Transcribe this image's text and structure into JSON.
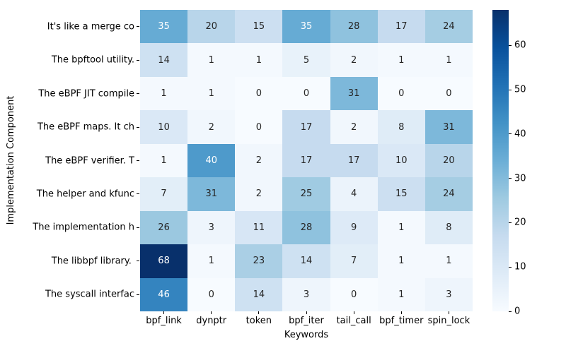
{
  "chart_data": {
    "type": "heatmap",
    "xlabel": "Keywords",
    "ylabel": "Implementation Component",
    "x_categories": [
      "bpf_link",
      "dynptr",
      "token",
      "bpf_iter",
      "tail_call",
      "bpf_timer",
      "spin_lock"
    ],
    "y_categories": [
      "It's like a merge co",
      "The bpftool utility.",
      "The eBPF JIT compile",
      "The eBPF maps. It ch",
      "The eBPF verifier. T",
      "The helper and kfunc",
      "The implementation h",
      "The libbpf library. ",
      "The syscall interfac"
    ],
    "values": [
      [
        35,
        20,
        15,
        35,
        28,
        17,
        24
      ],
      [
        14,
        1,
        1,
        5,
        2,
        1,
        1
      ],
      [
        1,
        1,
        0,
        0,
        31,
        0,
        0
      ],
      [
        10,
        2,
        0,
        17,
        2,
        8,
        31
      ],
      [
        1,
        40,
        2,
        17,
        17,
        10,
        20
      ],
      [
        7,
        31,
        2,
        25,
        4,
        15,
        24
      ],
      [
        26,
        3,
        11,
        28,
        9,
        1,
        8
      ],
      [
        68,
        1,
        23,
        14,
        7,
        1,
        1
      ],
      [
        46,
        0,
        14,
        3,
        0,
        1,
        3
      ]
    ],
    "annotated": true,
    "colormap": "Blues",
    "vmin": 0,
    "vmax": 68,
    "colorbar_ticks": [
      0,
      10,
      20,
      30,
      40,
      50,
      60
    ],
    "colors": {
      "background": "#ffffff",
      "cmap_low": "#f7fbff",
      "cmap_high": "#08306b",
      "annotation_dark": "#262626",
      "annotation_light": "#ffffff",
      "tick": "#000000"
    }
  }
}
